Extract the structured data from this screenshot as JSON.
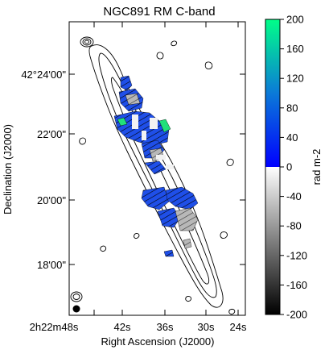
{
  "chart_data": {
    "type": "heatmap",
    "title": "NGC891  RM  C-band",
    "xlabel": "Right Ascension (J2000)",
    "ylabel": "Declination (J2000)",
    "x_tick_labels": [
      "2h22m48s",
      "42s",
      "36s",
      "30s",
      "24s"
    ],
    "y_tick_labels": [
      "42°24'00\"",
      "22'00\"",
      "20'00\"",
      "18'00\""
    ],
    "colorbar": {
      "label": "rad m-2",
      "range": [
        -200,
        200
      ],
      "ticks": [
        200,
        160,
        120,
        80,
        40,
        0,
        -40,
        -80,
        -120,
        -160,
        -200
      ],
      "positive_colormap": [
        "#0000ff",
        "#00ff88"
      ],
      "negative_colormap": [
        "#000000",
        "#ffffff"
      ]
    },
    "overlays": {
      "contours": true,
      "beam_marker": true
    }
  }
}
